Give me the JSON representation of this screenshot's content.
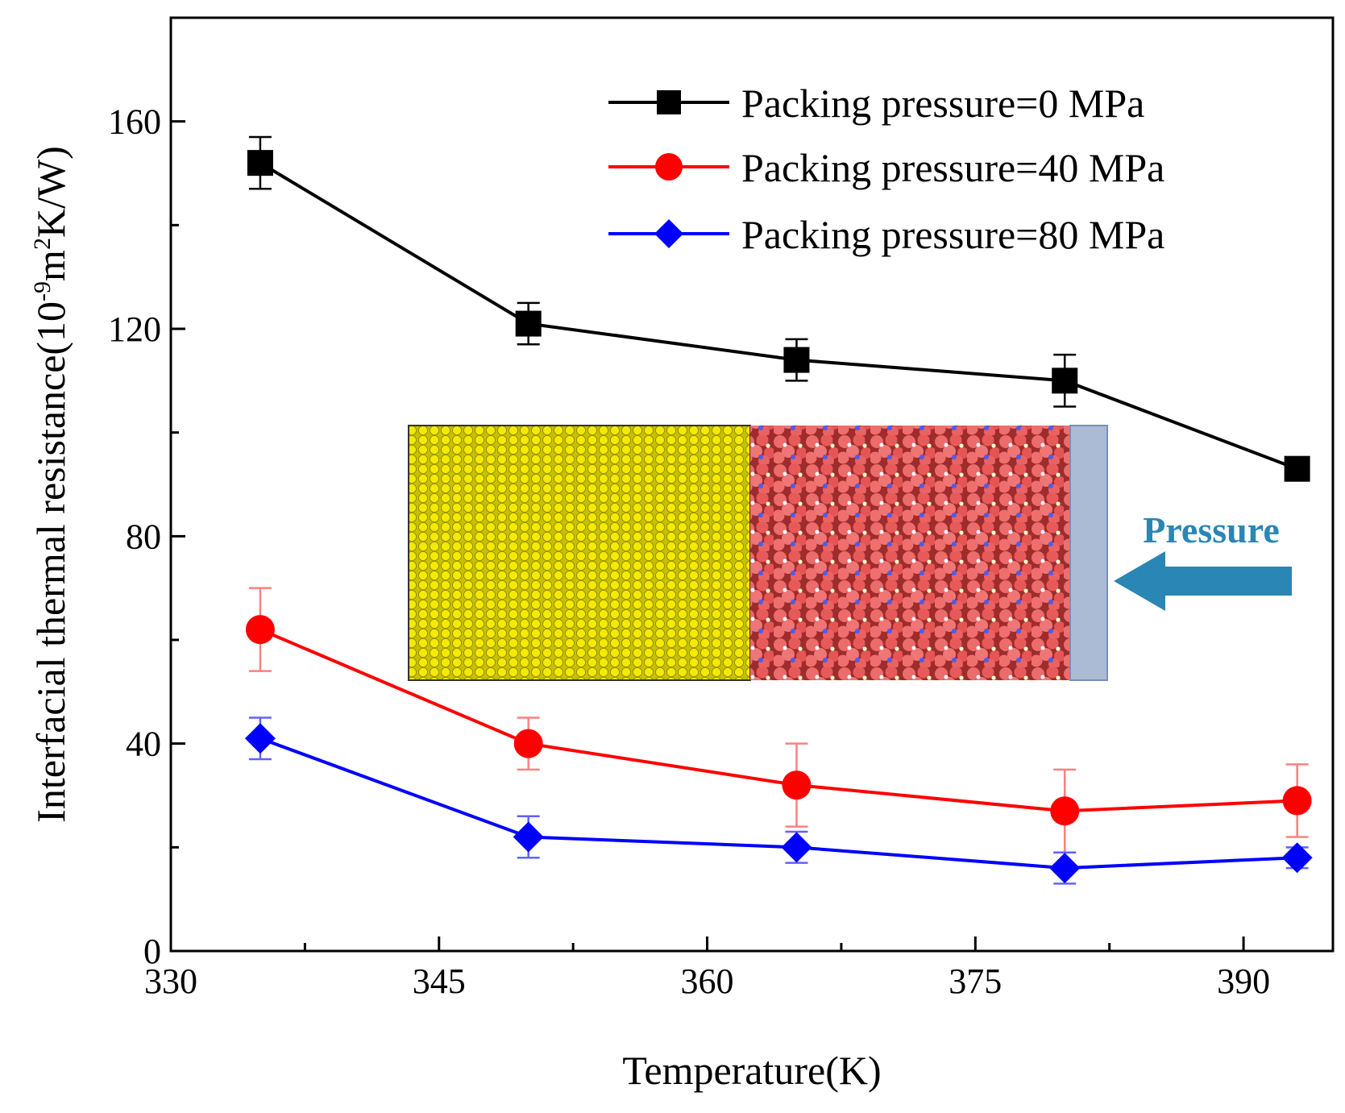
{
  "chart_data": {
    "type": "line",
    "title": "",
    "xlabel": "Temperature(K)",
    "ylabel_main": "Interfacial thermal resistance(10",
    "ylabel_sup1": "-9",
    "ylabel_mid": "m",
    "ylabel_sup2": "2",
    "ylabel_end": "K/W)",
    "xlim": [
      330,
      395
    ],
    "ylim": [
      0,
      180
    ],
    "xticks": [
      330,
      345,
      360,
      375,
      390
    ],
    "yticks": [
      0,
      40,
      80,
      120,
      160
    ],
    "grid": false,
    "legend_position": "top-right",
    "series": [
      {
        "name": "Packing pressure=0 MPa",
        "color": "#000000",
        "marker": "square",
        "x": [
          335,
          350,
          365,
          380,
          393
        ],
        "y": [
          152,
          121,
          114,
          110,
          93
        ],
        "err": [
          5,
          4,
          4,
          5,
          0
        ]
      },
      {
        "name": "Packing pressure=40 MPa",
        "color": "#ff0000",
        "marker": "circle",
        "x": [
          335,
          350,
          365,
          380,
          393
        ],
        "y": [
          62,
          40,
          32,
          27,
          29
        ],
        "err": [
          8,
          5,
          8,
          8,
          7
        ]
      },
      {
        "name": "Packing pressure=80 MPa",
        "color": "#0000ff",
        "marker": "diamond",
        "x": [
          335,
          350,
          365,
          380,
          393
        ],
        "y": [
          41,
          22,
          20,
          16,
          18
        ],
        "err": [
          4,
          4,
          3,
          3,
          2
        ]
      }
    ]
  },
  "inset": {
    "label": "Pressure",
    "label_color": "#2a86b4",
    "slab_color": "#f0e800",
    "polymer_color": "#e65a5a"
  }
}
